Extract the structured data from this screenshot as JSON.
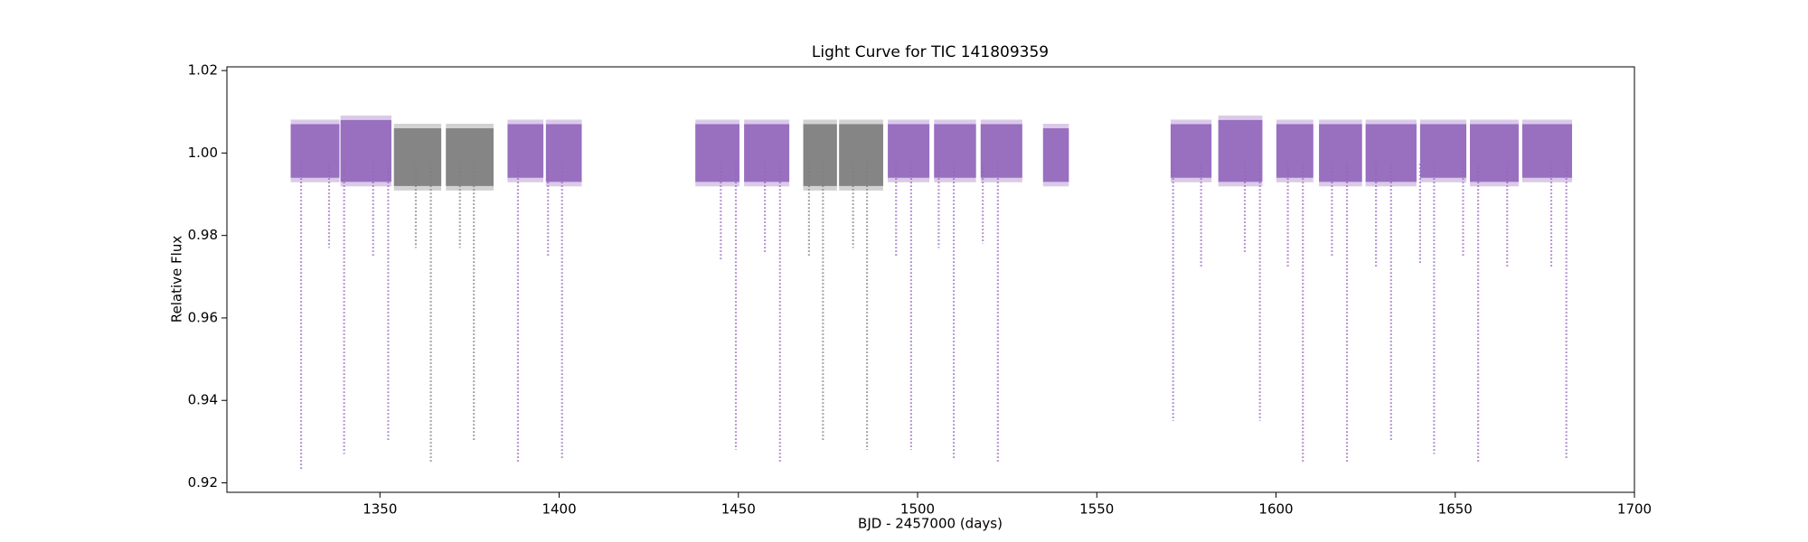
{
  "chart_data": {
    "type": "scatter",
    "title": "Light Curve for TIC 141809359",
    "x_label": "BJD - 2457000 (days)",
    "y_label": "Relative Flux",
    "xlim": [
      1307.3,
      1700
    ],
    "xticks": [
      1350,
      1400,
      1450,
      1500,
      1550,
      1600,
      1650,
      1700
    ],
    "ylim": [
      0.9177,
      1.0209
    ],
    "yticks": [
      0.92,
      0.94,
      0.96,
      0.98,
      {
        "value": 1,
        "label": "1.00"
      },
      1.02
    ],
    "grid": false,
    "segments": [
      {
        "x": [
          1325.1,
          1338.7
        ],
        "band": [
          0.994,
          1.007
        ],
        "color": "#9467bd"
      },
      {
        "x": [
          1339.0,
          1353.2
        ],
        "band": [
          0.993,
          1.008
        ],
        "color": "#9467bd"
      },
      {
        "x": [
          1353.9,
          1367.1
        ],
        "band": [
          0.992,
          1.006
        ],
        "color": "#7f7f7f"
      },
      {
        "x": [
          1368.4,
          1381.7
        ],
        "band": [
          0.992,
          1.006
        ],
        "color": "#7f7f7f"
      },
      {
        "x": [
          1385.6,
          1395.6
        ],
        "band": [
          0.994,
          1.007
        ],
        "color": "#9467bd"
      },
      {
        "x": [
          1396.3,
          1406.3
        ],
        "band": [
          0.993,
          1.007
        ],
        "color": "#9467bd"
      },
      {
        "x": [
          1438.0,
          1450.3
        ],
        "band": [
          0.993,
          1.007
        ],
        "color": "#9467bd"
      },
      {
        "x": [
          1451.6,
          1464.2
        ],
        "band": [
          0.993,
          1.007
        ],
        "color": "#9467bd"
      },
      {
        "x": [
          1468.1,
          1477.5
        ],
        "band": [
          0.992,
          1.007
        ],
        "color": "#7f7f7f"
      },
      {
        "x": [
          1478.1,
          1490.4
        ],
        "band": [
          0.992,
          1.007
        ],
        "color": "#7f7f7f"
      },
      {
        "x": [
          1491.7,
          1503.3
        ],
        "band": [
          0.994,
          1.007
        ],
        "color": "#9467bd"
      },
      {
        "x": [
          1504.6,
          1516.3
        ],
        "band": [
          0.994,
          1.007
        ],
        "color": "#9467bd"
      },
      {
        "x": [
          1517.6,
          1529.2
        ],
        "band": [
          0.994,
          1.007
        ],
        "color": "#9467bd"
      },
      {
        "x": [
          1535.0,
          1542.2
        ],
        "band": [
          0.993,
          1.006
        ],
        "color": "#9467bd"
      },
      {
        "x": [
          1570.6,
          1582.0
        ],
        "band": [
          0.994,
          1.007
        ],
        "color": "#9467bd"
      },
      {
        "x": [
          1583.9,
          1596.2
        ],
        "band": [
          0.993,
          1.008
        ],
        "color": "#9467bd"
      },
      {
        "x": [
          1600.1,
          1610.4
        ],
        "band": [
          0.994,
          1.007
        ],
        "color": "#9467bd"
      },
      {
        "x": [
          1612.0,
          1624.0
        ],
        "band": [
          0.993,
          1.007
        ],
        "color": "#9467bd"
      },
      {
        "x": [
          1625.0,
          1639.2
        ],
        "band": [
          0.993,
          1.007
        ],
        "color": "#9467bd"
      },
      {
        "x": [
          1640.2,
          1653.1
        ],
        "band": [
          0.994,
          1.007
        ],
        "color": "#9467bd"
      },
      {
        "x": [
          1654.1,
          1667.7
        ],
        "band": [
          0.993,
          1.007
        ],
        "color": "#9467bd"
      },
      {
        "x": [
          1668.7,
          1682.6
        ],
        "band": [
          0.994,
          1.007
        ],
        "color": "#9467bd"
      }
    ],
    "dips": [
      {
        "x": 1328.0,
        "depth": 0.923,
        "color": "#9467bd"
      },
      {
        "x": 1335.8,
        "depth": 0.977,
        "color": "#9467bd"
      },
      {
        "x": 1340.0,
        "depth": 0.927,
        "color": "#9467bd"
      },
      {
        "x": 1348.1,
        "depth": 0.975,
        "color": "#9467bd"
      },
      {
        "x": 1352.3,
        "depth": 0.93,
        "color": "#9467bd"
      },
      {
        "x": 1360.0,
        "depth": 0.977,
        "color": "#7f7f7f"
      },
      {
        "x": 1364.2,
        "depth": 0.925,
        "color": "#7f7f7f"
      },
      {
        "x": 1372.3,
        "depth": 0.977,
        "color": "#7f7f7f"
      },
      {
        "x": 1376.2,
        "depth": 0.93,
        "color": "#7f7f7f"
      },
      {
        "x": 1388.5,
        "depth": 0.925,
        "color": "#9467bd"
      },
      {
        "x": 1396.9,
        "depth": 0.975,
        "color": "#9467bd"
      },
      {
        "x": 1400.8,
        "depth": 0.926,
        "color": "#9467bd"
      },
      {
        "x": 1445.1,
        "depth": 0.974,
        "color": "#9467bd"
      },
      {
        "x": 1449.3,
        "depth": 0.928,
        "color": "#9467bd"
      },
      {
        "x": 1457.4,
        "depth": 0.976,
        "color": "#9467bd"
      },
      {
        "x": 1461.6,
        "depth": 0.925,
        "color": "#9467bd"
      },
      {
        "x": 1469.7,
        "depth": 0.975,
        "color": "#7f7f7f"
      },
      {
        "x": 1473.6,
        "depth": 0.93,
        "color": "#7f7f7f"
      },
      {
        "x": 1482.0,
        "depth": 0.977,
        "color": "#7f7f7f"
      },
      {
        "x": 1485.9,
        "depth": 0.928,
        "color": "#7f7f7f"
      },
      {
        "x": 1494.0,
        "depth": 0.975,
        "color": "#9467bd"
      },
      {
        "x": 1498.2,
        "depth": 0.928,
        "color": "#9467bd"
      },
      {
        "x": 1505.9,
        "depth": 0.977,
        "color": "#9467bd"
      },
      {
        "x": 1510.1,
        "depth": 0.926,
        "color": "#9467bd"
      },
      {
        "x": 1518.2,
        "depth": 0.978,
        "color": "#9467bd"
      },
      {
        "x": 1522.4,
        "depth": 0.925,
        "color": "#9467bd"
      },
      {
        "x": 1571.3,
        "depth": 0.935,
        "color": "#9467bd"
      },
      {
        "x": 1579.1,
        "depth": 0.972,
        "color": "#9467bd"
      },
      {
        "x": 1591.3,
        "depth": 0.976,
        "color": "#9467bd"
      },
      {
        "x": 1595.5,
        "depth": 0.935,
        "color": "#9467bd"
      },
      {
        "x": 1603.3,
        "depth": 0.972,
        "color": "#9467bd"
      },
      {
        "x": 1607.5,
        "depth": 0.925,
        "color": "#9467bd"
      },
      {
        "x": 1615.6,
        "depth": 0.975,
        "color": "#9467bd"
      },
      {
        "x": 1619.8,
        "depth": 0.925,
        "color": "#9467bd"
      },
      {
        "x": 1627.9,
        "depth": 0.972,
        "color": "#9467bd"
      },
      {
        "x": 1632.1,
        "depth": 0.93,
        "color": "#9467bd"
      },
      {
        "x": 1640.2,
        "depth": 0.973,
        "color": "#9467bd"
      },
      {
        "x": 1644.1,
        "depth": 0.927,
        "color": "#9467bd"
      },
      {
        "x": 1652.2,
        "depth": 0.975,
        "color": "#9467bd"
      },
      {
        "x": 1656.4,
        "depth": 0.925,
        "color": "#9467bd"
      },
      {
        "x": 1664.5,
        "depth": 0.972,
        "color": "#9467bd"
      },
      {
        "x": 1676.8,
        "depth": 0.972,
        "color": "#9467bd"
      },
      {
        "x": 1681.0,
        "depth": 0.926,
        "color": "#9467bd"
      }
    ]
  }
}
